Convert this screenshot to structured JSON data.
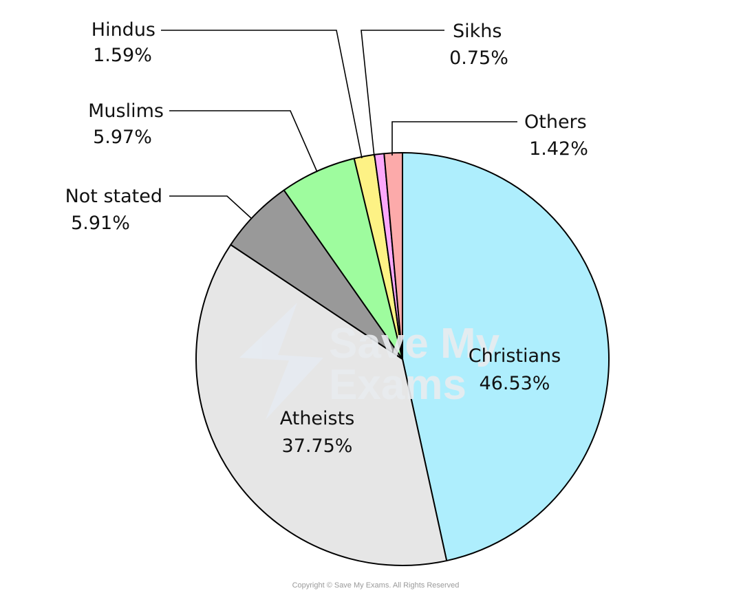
{
  "chart_data": {
    "type": "pie",
    "slices": [
      {
        "label": "Christians",
        "value": 46.53,
        "value_label": "46.53%",
        "color": "#aeeefd"
      },
      {
        "label": "Atheists",
        "value": 37.75,
        "value_label": "37.75%",
        "color": "#e6e6e6"
      },
      {
        "label": "Not stated",
        "value": 5.91,
        "value_label": "5.91%",
        "color": "#999999"
      },
      {
        "label": "Muslims",
        "value": 5.97,
        "value_label": "5.97%",
        "color": "#9efc9e"
      },
      {
        "label": "Hindus",
        "value": 1.59,
        "value_label": "1.59%",
        "color": "#fdf285"
      },
      {
        "label": "Sikhs",
        "value": 0.75,
        "value_label": "0.75%",
        "color": "#fba8fb"
      },
      {
        "label": "Others",
        "value": 1.42,
        "value_label": "1.42%",
        "color": "#fcaaaa"
      }
    ],
    "start_angle": "12 o'clock",
    "direction": "clockwise"
  },
  "watermark": {
    "line1": "Save My",
    "line2": "Exams"
  },
  "copyright": "Copyright © Save My Exams. All Rights Reserved"
}
